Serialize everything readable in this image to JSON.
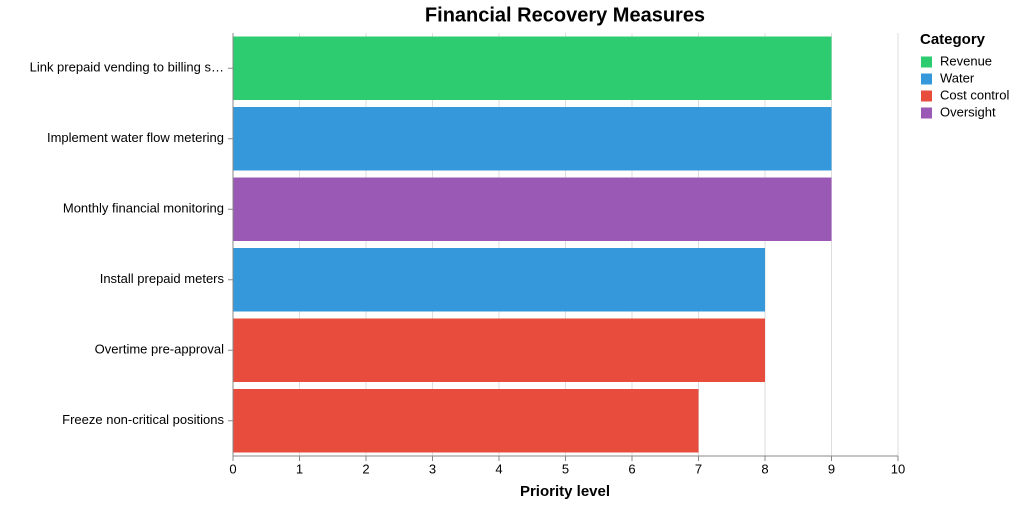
{
  "chart_data": {
    "type": "bar",
    "orientation": "horizontal",
    "title": "Financial Recovery Measures",
    "x_label": "Priority level",
    "categories": [
      "Link prepaid vending to billing s…",
      "Implement water flow metering",
      "Monthly financial monitoring",
      "Install prepaid meters",
      "Overtime pre-approval",
      "Freeze non-critical positions"
    ],
    "values": [
      9,
      9,
      9,
      8,
      8,
      7
    ],
    "groups": [
      "Revenue",
      "Water",
      "Oversight",
      "Water",
      "Cost control",
      "Cost control"
    ],
    "xlim": [
      0,
      10
    ],
    "xticks": [
      0,
      1,
      2,
      3,
      4,
      5,
      6,
      7,
      8,
      9,
      10
    ],
    "grid": true,
    "legend": {
      "title": "Category",
      "position": "right",
      "items": [
        {
          "name": "Revenue",
          "color": "#2ecc71"
        },
        {
          "name": "Water",
          "color": "#3498db"
        },
        {
          "name": "Cost control",
          "color": "#e74c3c"
        },
        {
          "name": "Oversight",
          "color": "#9b59b6"
        }
      ]
    }
  }
}
